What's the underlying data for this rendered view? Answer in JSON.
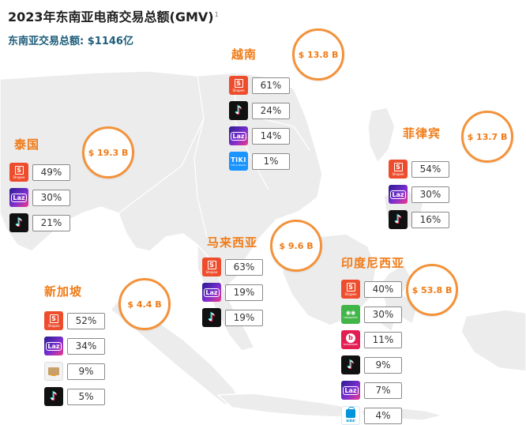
{
  "title": "2023年东南亚电商交易总额(GMV)",
  "title_note": "1",
  "subtitle": "东南亚交易总额: $1146亿",
  "colors": {
    "accent_orange": "#f07b17",
    "circle_border": "#f3923a",
    "subtitle_blue": "#1d5d7a",
    "map_fill": "#ececec",
    "map_line": "#ffffff"
  },
  "logos": {
    "shopee": {
      "icon": "shopee-bag-icon",
      "glyph": "S",
      "text": "Shopee"
    },
    "lazada": {
      "icon": "lazada-heart-icon",
      "glyph": "Laz"
    },
    "tiktok": {
      "icon": "tiktok-note-icon",
      "glyph": "♪"
    },
    "tiki": {
      "icon": "tiki-logo-icon",
      "glyph": "TIKI",
      "text": "Tốt & Nhanh"
    },
    "tokopedia": {
      "icon": "tokopedia-owl-icon",
      "glyph": "◉◉",
      "text": "tokopedia"
    },
    "bukalapak": {
      "icon": "bukalapak-b-icon",
      "glyph": "b",
      "text": "bukalapak"
    },
    "amazon": {
      "icon": "amazon-box-icon"
    },
    "blibli": {
      "icon": "blibli-bag-icon",
      "text": "blibli"
    }
  },
  "chart_data": [
    {
      "type": "table",
      "country": "越南",
      "total_gmv": "$ 13.8 B",
      "rows": [
        {
          "platform": "shopee",
          "share": "61%"
        },
        {
          "platform": "tiktok",
          "share": "24%"
        },
        {
          "platform": "lazada",
          "share": "14%"
        },
        {
          "platform": "tiki",
          "share": "1%"
        }
      ]
    },
    {
      "type": "table",
      "country": "泰国",
      "total_gmv": "$ 19.3 B",
      "rows": [
        {
          "platform": "shopee",
          "share": "49%"
        },
        {
          "platform": "lazada",
          "share": "30%"
        },
        {
          "platform": "tiktok",
          "share": "21%"
        }
      ]
    },
    {
      "type": "table",
      "country": "菲律宾",
      "total_gmv": "$ 13.7 B",
      "rows": [
        {
          "platform": "shopee",
          "share": "54%"
        },
        {
          "platform": "lazada",
          "share": "30%"
        },
        {
          "platform": "tiktok",
          "share": "16%"
        }
      ]
    },
    {
      "type": "table",
      "country": "马来西亚",
      "total_gmv": "$ 9.6 B",
      "rows": [
        {
          "platform": "shopee",
          "share": "63%"
        },
        {
          "platform": "lazada",
          "share": "19%"
        },
        {
          "platform": "tiktok",
          "share": "19%"
        }
      ]
    },
    {
      "type": "table",
      "country": "新加坡",
      "total_gmv": "$ 4.4 B",
      "rows": [
        {
          "platform": "shopee",
          "share": "52%"
        },
        {
          "platform": "lazada",
          "share": "34%"
        },
        {
          "platform": "amazon",
          "share": "9%"
        },
        {
          "platform": "tiktok",
          "share": "5%"
        }
      ]
    },
    {
      "type": "table",
      "country": "印度尼西亚",
      "total_gmv": "$ 53.8 B",
      "rows": [
        {
          "platform": "shopee",
          "share": "40%"
        },
        {
          "platform": "tokopedia",
          "share": "30%"
        },
        {
          "platform": "bukalapak",
          "share": "11%"
        },
        {
          "platform": "tiktok",
          "share": "9%"
        },
        {
          "platform": "lazada",
          "share": "7%"
        },
        {
          "platform": "blibli",
          "share": "4%"
        }
      ]
    }
  ]
}
